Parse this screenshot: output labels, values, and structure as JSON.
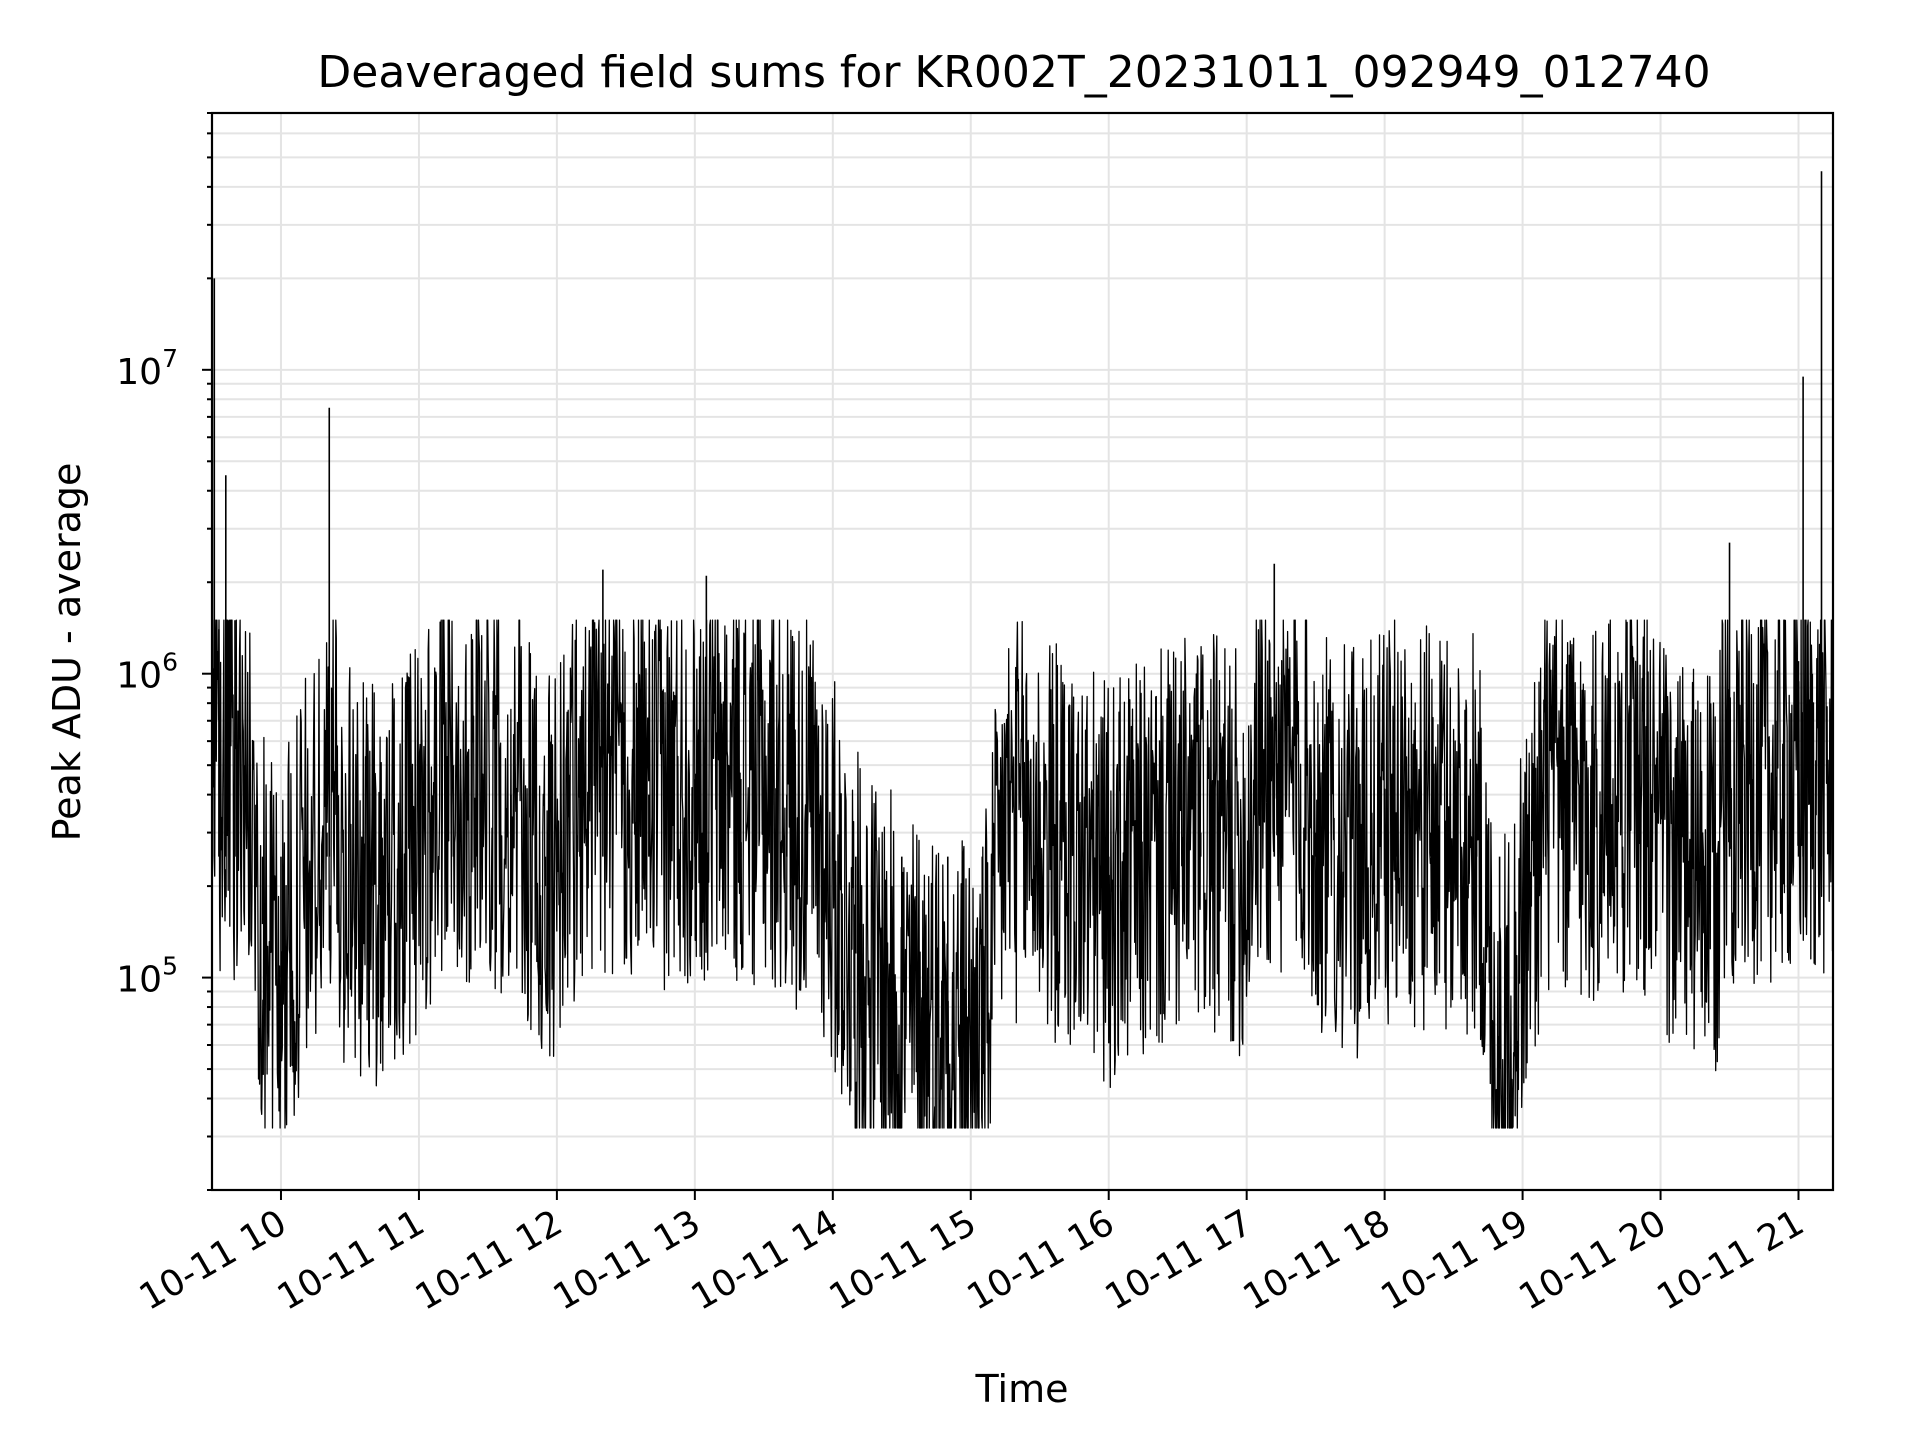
{
  "chart_data": {
    "type": "line",
    "title": "Deaveraged field sums for KR002T_20231011_092949_012740",
    "xlabel": "Time",
    "ylabel": "Peak ADU - average",
    "yscale": "log",
    "ylim": [
      20000,
      70000000
    ],
    "xlim": [
      "2023-10-11 09:30",
      "2023-10-11 21:15"
    ],
    "grid": true,
    "line_color": "#000000",
    "x_tick_labels": [
      "10-11 10",
      "10-11 11",
      "10-11 12",
      "10-11 13",
      "10-11 14",
      "10-11 15",
      "10-11 16",
      "10-11 17",
      "10-11 18",
      "10-11 19",
      "10-11 20",
      "10-11 21"
    ],
    "y_tick_labels": [
      {
        "base": "10",
        "exp": "5",
        "value": 100000
      },
      {
        "base": "10",
        "exp": "6",
        "value": 1000000
      },
      {
        "base": "10",
        "exp": "7",
        "value": 10000000
      }
    ],
    "series": [
      {
        "x": [
          "2023-10-11 09:30",
          "2023-10-11 09:31",
          "2023-10-11 09:33",
          "2023-10-11 09:36",
          "2023-10-11 09:40",
          "2023-10-11 09:44",
          "2023-10-11 09:48",
          "2023-10-11 09:52",
          "2023-10-11 10:00",
          "2023-10-11 10:10",
          "2023-10-11 10:20",
          "2023-10-11 10:21",
          "2023-10-11 10:25",
          "2023-10-11 10:40",
          "2023-10-11 10:55",
          "2023-10-11 11:05",
          "2023-10-11 11:15",
          "2023-10-11 11:25",
          "2023-10-11 11:40",
          "2023-10-11 11:55",
          "2023-10-11 12:10",
          "2023-10-11 12:20",
          "2023-10-11 12:40",
          "2023-10-11 13:00",
          "2023-10-11 13:05",
          "2023-10-11 13:20",
          "2023-10-11 13:40",
          "2023-10-11 13:55",
          "2023-10-11 14:10",
          "2023-10-11 14:30",
          "2023-10-11 14:50",
          "2023-10-11 15:05",
          "2023-10-11 15:15",
          "2023-10-11 15:30",
          "2023-10-11 15:45",
          "2023-10-11 16:00",
          "2023-10-11 16:20",
          "2023-10-11 16:40",
          "2023-10-11 17:00",
          "2023-10-11 17:12",
          "2023-10-11 17:30",
          "2023-10-11 17:50",
          "2023-10-11 18:05",
          "2023-10-11 18:20",
          "2023-10-11 18:40",
          "2023-10-11 18:50",
          "2023-10-11 19:10",
          "2023-10-11 19:30",
          "2023-10-11 19:50",
          "2023-10-11 20:05",
          "2023-10-11 20:25",
          "2023-10-11 20:30",
          "2023-10-11 20:40",
          "2023-10-11 20:50",
          "2023-10-11 21:00",
          "2023-10-11 21:02",
          "2023-10-11 21:06",
          "2023-10-11 21:10",
          "2023-10-11 21:15"
        ],
        "y": [
          1800000,
          20000000,
          1400000,
          4500000,
          1500000,
          500000,
          250000,
          150000,
          100000,
          200000,
          300000,
          7500000,
          250000,
          200000,
          250000,
          350000,
          500000,
          450000,
          400000,
          200000,
          450000,
          2200000,
          400000,
          450000,
          2100000,
          450000,
          400000,
          300000,
          120000,
          80000,
          70000,
          60000,
          350000,
          300000,
          250000,
          200000,
          250000,
          300000,
          250000,
          2300000,
          300000,
          250000,
          350000,
          300000,
          300000,
          50000,
          400000,
          350000,
          450000,
          250000,
          200000,
          2700000,
          450000,
          700000,
          1100000,
          9500000,
          1000000,
          45000000,
          800000
        ]
      }
    ]
  }
}
